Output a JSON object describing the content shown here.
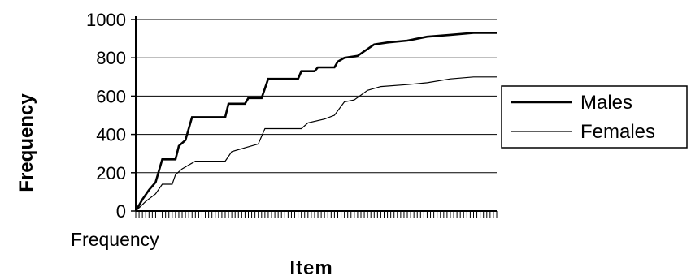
{
  "chart_data": {
    "type": "line",
    "title": "",
    "xlabel": "Item",
    "ylabel": "Frequency",
    "x_category_label": "Frequency",
    "ylim": [
      0,
      1000
    ],
    "yticks": [
      "0",
      "200",
      "400",
      "600",
      "800",
      "1000"
    ],
    "grid": true,
    "legend_position": "right",
    "n_items": 110,
    "series": [
      {
        "name": "Males",
        "color": "#000000",
        "points": [
          [
            0,
            0
          ],
          [
            2,
            60
          ],
          [
            4,
            110
          ],
          [
            6,
            150
          ],
          [
            8,
            270
          ],
          [
            12,
            270
          ],
          [
            13,
            340
          ],
          [
            15,
            370
          ],
          [
            17,
            490
          ],
          [
            27,
            490
          ],
          [
            28,
            560
          ],
          [
            33,
            560
          ],
          [
            34,
            590
          ],
          [
            38,
            590
          ],
          [
            40,
            690
          ],
          [
            49,
            690
          ],
          [
            50,
            730
          ],
          [
            54,
            730
          ],
          [
            55,
            750
          ],
          [
            60,
            750
          ],
          [
            61,
            780
          ],
          [
            63,
            800
          ],
          [
            67,
            810
          ],
          [
            72,
            870
          ],
          [
            76,
            880
          ],
          [
            82,
            890
          ],
          [
            88,
            910
          ],
          [
            95,
            920
          ],
          [
            102,
            930
          ],
          [
            109,
            930
          ]
        ]
      },
      {
        "name": "Females",
        "color": "#000000",
        "points": [
          [
            0,
            0
          ],
          [
            3,
            50
          ],
          [
            6,
            90
          ],
          [
            8,
            140
          ],
          [
            11,
            140
          ],
          [
            12,
            190
          ],
          [
            14,
            220
          ],
          [
            18,
            260
          ],
          [
            27,
            260
          ],
          [
            29,
            310
          ],
          [
            33,
            330
          ],
          [
            37,
            350
          ],
          [
            39,
            430
          ],
          [
            50,
            430
          ],
          [
            52,
            460
          ],
          [
            57,
            480
          ],
          [
            60,
            500
          ],
          [
            63,
            570
          ],
          [
            66,
            580
          ],
          [
            70,
            630
          ],
          [
            74,
            650
          ],
          [
            82,
            660
          ],
          [
            88,
            670
          ],
          [
            95,
            690
          ],
          [
            102,
            700
          ],
          [
            109,
            700
          ]
        ]
      }
    ]
  }
}
